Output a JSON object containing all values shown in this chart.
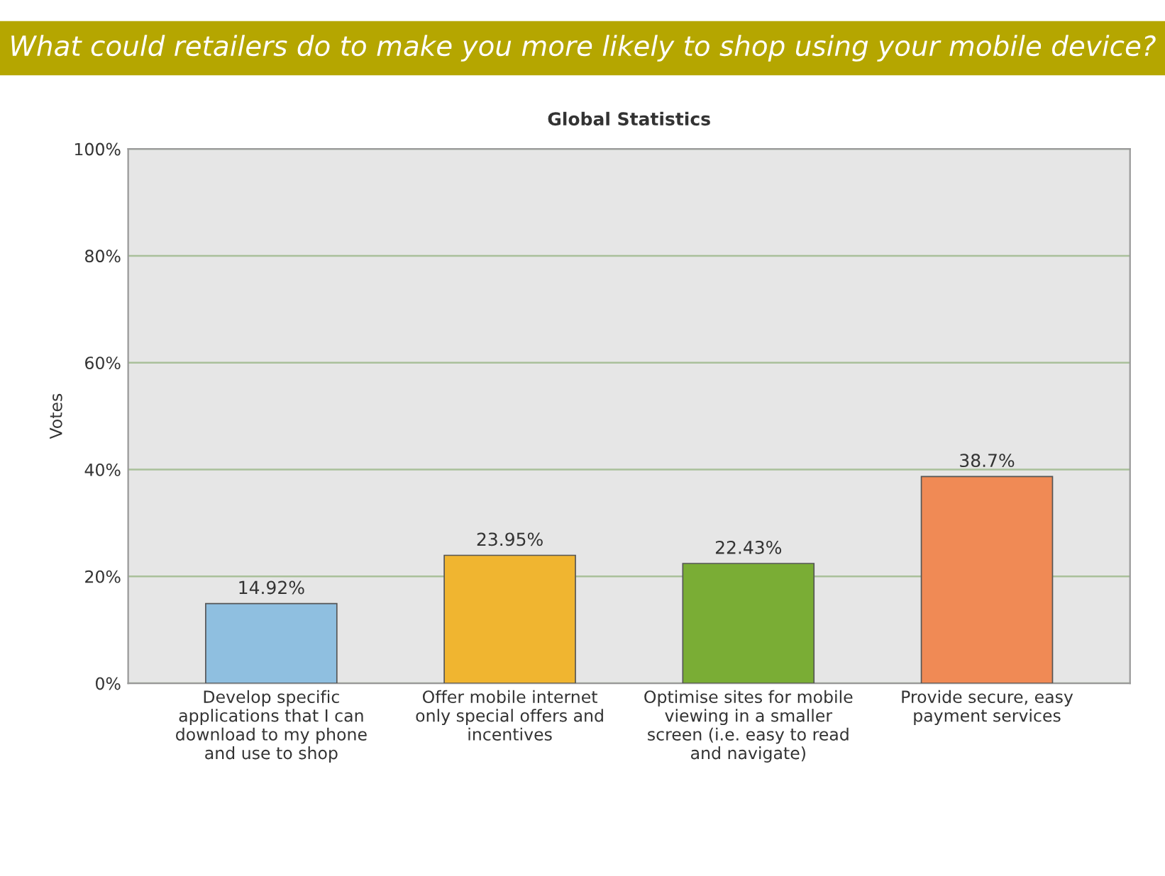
{
  "chart_data": {
    "type": "bar",
    "title": "What could retailers do to make you more likely to shop using your mobile device?",
    "subtitle": "Global Statistics",
    "ylabel": "Votes",
    "categories": [
      "Develop specific\napplications that I can\ndownload to my phone\nand use to shop",
      "Offer mobile internet\nonly special offers and\nincentives",
      "Optimise sites for mobile\nviewing in a smaller\nscreen (i.e. easy to read\nand navigate)",
      "Provide secure, easy\npayment services"
    ],
    "values": [
      14.92,
      23.95,
      22.43,
      38.7
    ],
    "colors": [
      "#8fbfe0",
      "#f0b530",
      "#7aad35",
      "#f08a55"
    ],
    "value_labels": [
      "14.92%",
      "23.95%",
      "22.43%",
      "38.7%"
    ],
    "ylim": [
      0,
      100
    ],
    "yticks": [
      {
        "value": 0,
        "label": "0%"
      },
      {
        "value": 20,
        "label": "20%"
      },
      {
        "value": 40,
        "label": "40%"
      },
      {
        "value": 60,
        "label": "60%"
      },
      {
        "value": 80,
        "label": "80%"
      },
      {
        "value": 100,
        "label": "100%"
      }
    ],
    "grid": "y"
  }
}
